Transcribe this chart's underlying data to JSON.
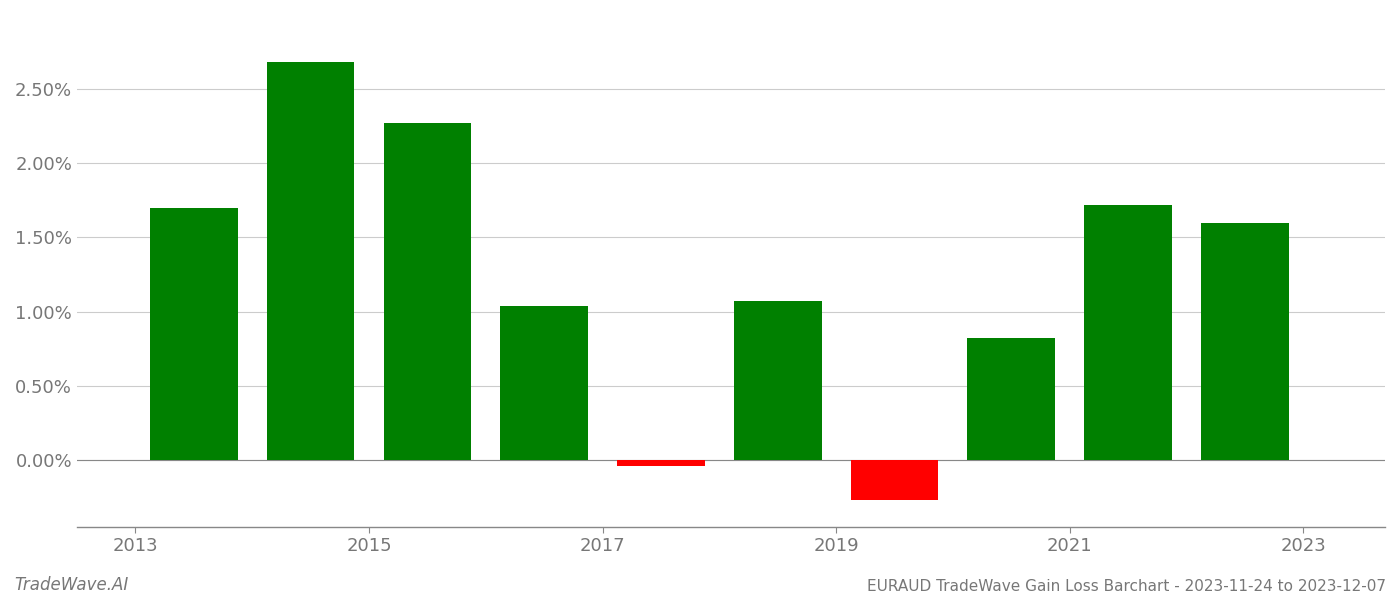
{
  "years": [
    2013,
    2014,
    2015,
    2016,
    2017,
    2018,
    2019,
    2020,
    2021,
    2022
  ],
  "values": [
    1.7,
    2.68,
    2.27,
    1.04,
    -0.04,
    1.07,
    -0.27,
    0.82,
    1.72,
    1.6
  ],
  "colors": [
    "#008000",
    "#008000",
    "#008000",
    "#008000",
    "#ff0000",
    "#008000",
    "#ff0000",
    "#008000",
    "#008000",
    "#008000"
  ],
  "title": "EURAUD TradeWave Gain Loss Barchart - 2023-11-24 to 2023-12-07",
  "watermark": "TradeWave.AI",
  "ylim_min": -0.45,
  "ylim_max": 3.0,
  "background_color": "#ffffff",
  "grid_color": "#cccccc",
  "bar_width": 0.75,
  "x_tick_positions": [
    2012.5,
    2014.5,
    2016.5,
    2018.5,
    2020.5,
    2022.5
  ],
  "x_tick_labels": [
    "2013",
    "2015",
    "2017",
    "2019",
    "2021",
    "2023"
  ],
  "y_ticks": [
    0.0,
    0.5,
    1.0,
    1.5,
    2.0,
    2.5
  ]
}
